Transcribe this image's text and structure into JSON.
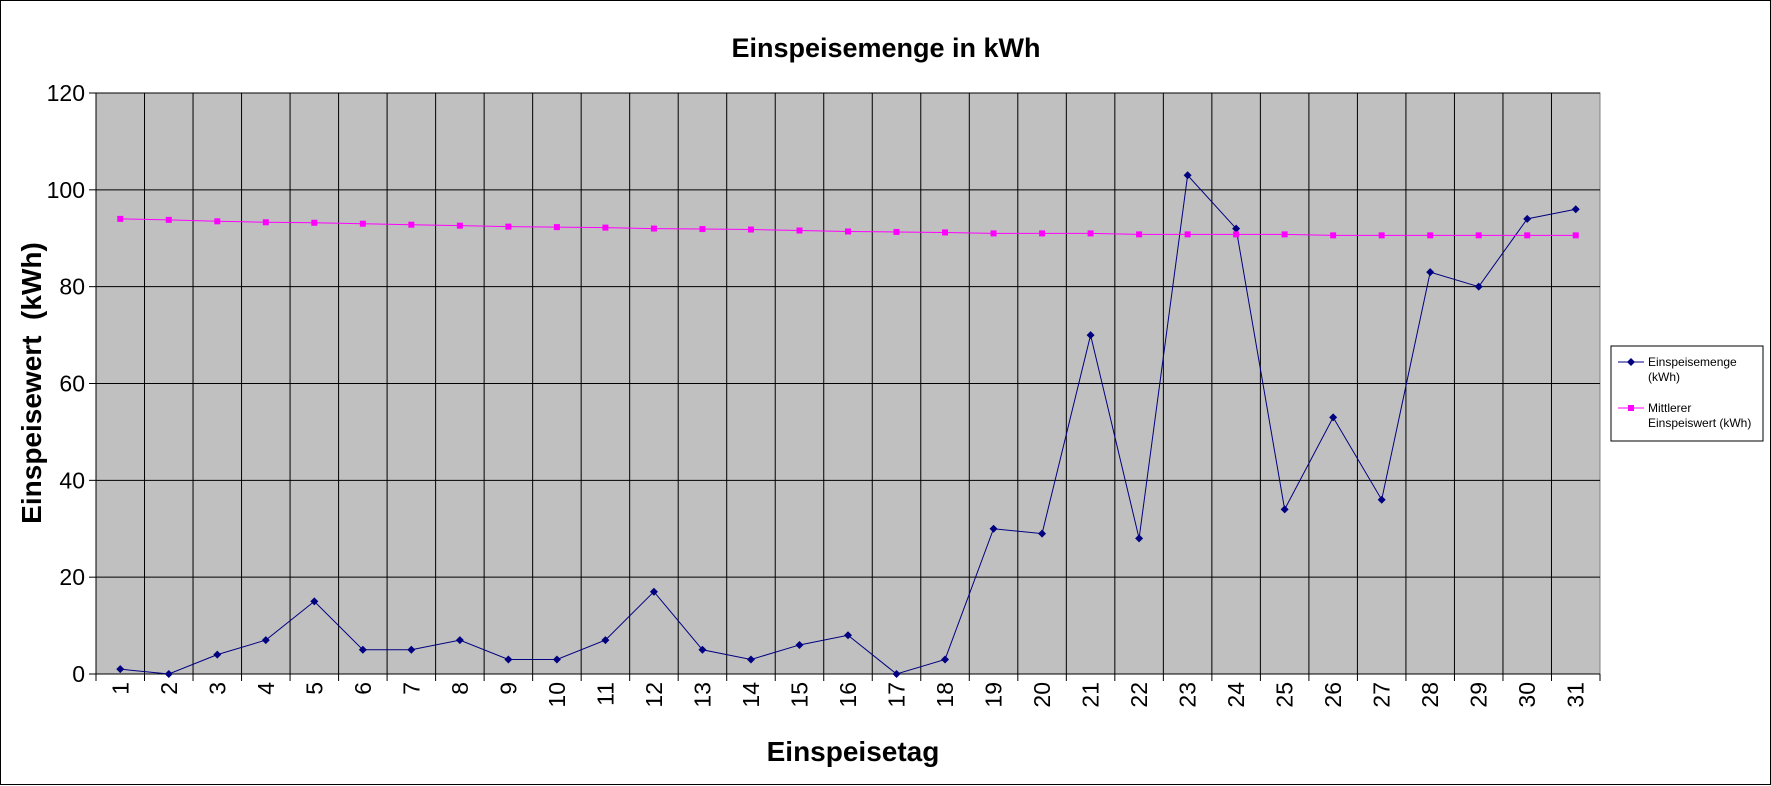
{
  "chart_data": {
    "type": "line",
    "title": "Einspeisemenge in kWh",
    "xlabel": "Einspeisetag",
    "ylabel": "Einspeisewert  (kWh)",
    "ylim": [
      0,
      120
    ],
    "yticks": [
      0,
      20,
      40,
      60,
      80,
      100,
      120
    ],
    "grid": true,
    "legend_position": "right",
    "plot_background": "#c0c0c0",
    "x": [
      1,
      2,
      3,
      4,
      5,
      6,
      7,
      8,
      9,
      10,
      11,
      12,
      13,
      14,
      15,
      16,
      17,
      18,
      19,
      20,
      21,
      22,
      23,
      24,
      25,
      26,
      27,
      28,
      29,
      30,
      31
    ],
    "series": [
      {
        "name": "Einspeisemenge (kWh)",
        "legend_lines": [
          "Einspeisemenge",
          "(kWh)"
        ],
        "color": "#000080",
        "marker": "diamond",
        "values": [
          1,
          0,
          4,
          7,
          15,
          5,
          5,
          7,
          3,
          3,
          7,
          17,
          5,
          3,
          6,
          8,
          0,
          3,
          30,
          29,
          70,
          28,
          103,
          92,
          34,
          53,
          36,
          83,
          80,
          94,
          96
        ]
      },
      {
        "name": "Mittlerer Einspeiswert (kWh)",
        "legend_lines": [
          "Mittlerer",
          "Einspeiswert (kWh)"
        ],
        "color": "#ff00ff",
        "marker": "square",
        "values": [
          94,
          93.8,
          93.5,
          93.3,
          93.2,
          93,
          92.8,
          92.6,
          92.4,
          92.3,
          92.2,
          92,
          91.9,
          91.8,
          91.6,
          91.4,
          91.3,
          91.2,
          91,
          91,
          91,
          90.8,
          90.8,
          90.8,
          90.8,
          90.6,
          90.6,
          90.6,
          90.6,
          90.6,
          90.6
        ]
      }
    ]
  }
}
